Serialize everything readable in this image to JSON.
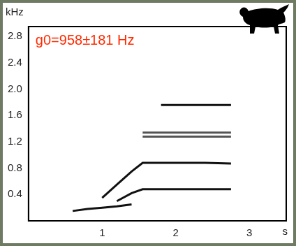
{
  "chart_data": {
    "type": "line",
    "annotation": "g0=958±181 Hz",
    "x_label": "s",
    "y_label": "kHz",
    "x": [
      0.6,
      0.8,
      1.0,
      1.2,
      1.4,
      1.55,
      1.8,
      2.0,
      2.4,
      2.75
    ],
    "series": [
      {
        "color": "#111111",
        "values": [
          0.15,
          0.18,
          0.2,
          0.22,
          0.25,
          null,
          null,
          null,
          null,
          null
        ]
      },
      {
        "color": "#111111",
        "values": [
          null,
          null,
          null,
          0.3,
          0.42,
          0.48,
          0.48,
          0.48,
          0.48,
          0.48
        ]
      },
      {
        "color": "#111111",
        "values": [
          null,
          null,
          0.35,
          0.55,
          0.75,
          0.88,
          0.88,
          0.88,
          0.88,
          0.87
        ]
      },
      {
        "color": "#555555",
        "values": [
          null,
          null,
          null,
          null,
          null,
          1.28,
          1.28,
          1.28,
          1.28,
          1.28
        ]
      },
      {
        "color": "#555555",
        "values": [
          null,
          null,
          null,
          null,
          null,
          1.34,
          1.34,
          1.34,
          1.34,
          1.34
        ]
      },
      {
        "color": "#111111",
        "values": [
          null,
          null,
          null,
          null,
          null,
          null,
          1.76,
          1.76,
          1.76,
          1.76
        ]
      }
    ],
    "xlim": [
      0,
      3.5
    ],
    "xticks": [
      1,
      2,
      3
    ],
    "ylim": [
      0,
      2.95
    ],
    "yticks": [
      0.4,
      0.8,
      1.2,
      1.6,
      {
        "value": 2,
        "label": "2.0"
      },
      2.4,
      2.8
    ],
    "grid": false
  }
}
